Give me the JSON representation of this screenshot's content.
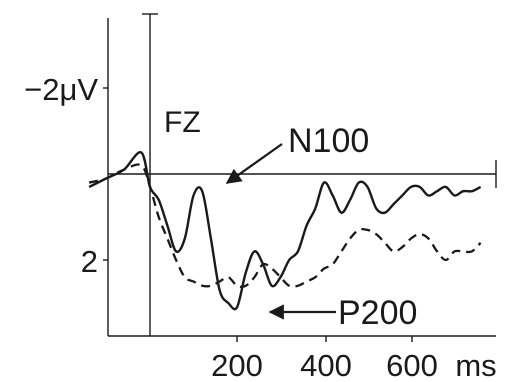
{
  "chart_data": {
    "type": "line",
    "channel_label": "FZ",
    "x_unit": "ms",
    "x_ticks": [
      "200",
      "400",
      "600"
    ],
    "y_ticks": [
      "−2μV",
      "2"
    ],
    "y_tick_values": [
      -2,
      2
    ],
    "y_inverted": true,
    "xlim": [
      -140,
      770
    ],
    "ylim": [
      -6,
      4.0
    ],
    "stimulus_onset_ms": 0,
    "series": [
      {
        "style": "solid",
        "x": [
          -140,
          -100,
          -60,
          -20,
          0,
          20,
          40,
          60,
          80,
          100,
          120,
          140,
          160,
          180,
          200,
          220,
          240,
          260,
          280,
          300,
          320,
          340,
          360,
          380,
          400,
          420,
          440,
          460,
          480,
          500,
          520,
          540,
          560,
          580,
          600,
          620,
          640,
          660,
          680,
          700,
          720,
          740,
          760
        ],
        "y": [
          0.3,
          0.1,
          -0.1,
          -0.5,
          0.3,
          0.6,
          1.2,
          1.8,
          1.5,
          0.5,
          0.4,
          1.5,
          2.7,
          3.0,
          3.1,
          2.3,
          1.8,
          2.1,
          2.6,
          2.4,
          2.0,
          1.8,
          1.2,
          0.8,
          0.2,
          0.5,
          0.9,
          0.6,
          0.2,
          0.3,
          0.8,
          0.9,
          0.7,
          0.5,
          0.3,
          0.3,
          0.5,
          0.4,
          0.3,
          0.5,
          0.4,
          0.4,
          0.3
        ]
      },
      {
        "style": "dashed",
        "x": [
          -140,
          -100,
          -60,
          -20,
          0,
          20,
          40,
          60,
          80,
          100,
          120,
          140,
          160,
          180,
          200,
          220,
          240,
          260,
          280,
          300,
          320,
          340,
          360,
          380,
          400,
          420,
          440,
          460,
          480,
          500,
          520,
          540,
          560,
          580,
          600,
          620,
          640,
          660,
          680,
          700,
          720,
          740,
          760
        ],
        "y": [
          0.2,
          0.1,
          -0.1,
          -0.2,
          0.3,
          1.0,
          1.5,
          2.0,
          2.4,
          2.5,
          2.6,
          2.6,
          2.5,
          2.4,
          2.6,
          2.6,
          2.4,
          2.1,
          2.2,
          2.4,
          2.6,
          2.6,
          2.5,
          2.4,
          2.2,
          2.1,
          1.8,
          1.5,
          1.3,
          1.3,
          1.4,
          1.6,
          1.8,
          1.7,
          1.5,
          1.4,
          1.5,
          1.8,
          2.0,
          1.8,
          1.8,
          1.8,
          1.6
        ]
      }
    ],
    "annotations": [
      {
        "text": "N100",
        "target_x": 80,
        "target_y": 0.05
      },
      {
        "text": "P200",
        "target_x": 225,
        "target_y": 3.0
      }
    ]
  }
}
